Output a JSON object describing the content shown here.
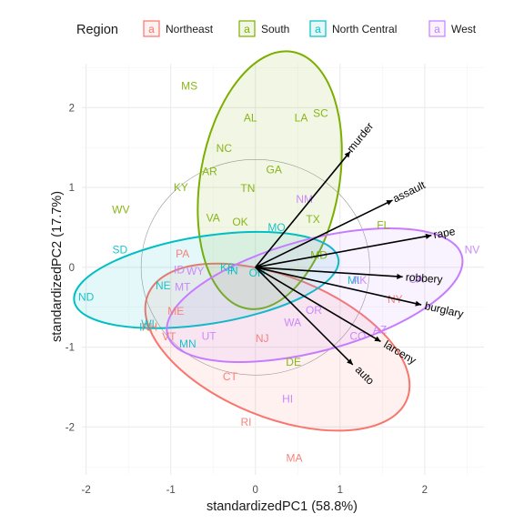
{
  "chart_data": {
    "type": "scatter",
    "title": "",
    "xlabel": "standardizedPC1 (58.8%)",
    "ylabel": "standardizedPC2 (17.7%)",
    "xlim": [
      -2.05,
      2.7
    ],
    "ylim": [
      -2.6,
      2.55
    ],
    "x_ticks": [
      -2,
      -1,
      0,
      1,
      2
    ],
    "y_ticks": [
      -2,
      -1,
      0,
      1,
      2
    ],
    "grid": true,
    "legend": {
      "title": "Region",
      "position": "top",
      "entries": [
        "Northeast",
        "South",
        "North Central",
        "West"
      ],
      "key_symbol": "a"
    },
    "colors": {
      "Northeast": "#F8766D",
      "South": "#7CAE00",
      "North Central": "#00BFC4",
      "West": "#C77CFF",
      "arrow": "#000000",
      "panel_grid": "#ebebeb",
      "circle": "#999999"
    },
    "points": [
      {
        "label": "MS",
        "region": "South",
        "x": -0.78,
        "y": 2.27
      },
      {
        "label": "AL",
        "region": "South",
        "x": -0.06,
        "y": 1.87
      },
      {
        "label": "LA",
        "region": "South",
        "x": 0.54,
        "y": 1.87
      },
      {
        "label": "SC",
        "region": "South",
        "x": 0.77,
        "y": 1.93
      },
      {
        "label": "NC",
        "region": "South",
        "x": -0.37,
        "y": 1.49
      },
      {
        "label": "GA",
        "region": "South",
        "x": 0.22,
        "y": 1.22
      },
      {
        "label": "AR",
        "region": "South",
        "x": -0.54,
        "y": 1.2
      },
      {
        "label": "KY",
        "region": "South",
        "x": -0.88,
        "y": 1.0
      },
      {
        "label": "TN",
        "region": "South",
        "x": -0.09,
        "y": 0.99
      },
      {
        "label": "WV",
        "region": "South",
        "x": -1.59,
        "y": 0.72
      },
      {
        "label": "VA",
        "region": "South",
        "x": -0.5,
        "y": 0.62
      },
      {
        "label": "OK",
        "region": "South",
        "x": -0.18,
        "y": 0.57
      },
      {
        "label": "TX",
        "region": "South",
        "x": 0.68,
        "y": 0.6
      },
      {
        "label": "MD",
        "region": "South",
        "x": 0.75,
        "y": 0.15
      },
      {
        "label": "FL",
        "region": "South",
        "x": 1.51,
        "y": 0.53
      },
      {
        "label": "DE",
        "region": "South",
        "x": 0.45,
        "y": -1.19
      },
      {
        "label": "NM",
        "region": "West",
        "x": 0.58,
        "y": 0.85
      },
      {
        "label": "NV",
        "region": "West",
        "x": 2.56,
        "y": 0.22
      },
      {
        "label": "CA",
        "region": "West",
        "x": 1.9,
        "y": -0.15
      },
      {
        "label": "MI",
        "region": "North Central",
        "x": 1.16,
        "y": -0.16
      },
      {
        "label": "AK",
        "region": "West",
        "x": 1.23,
        "y": -0.16
      },
      {
        "label": "NY",
        "region": "Northeast",
        "x": 1.65,
        "y": -0.4
      },
      {
        "label": "AZ",
        "region": "West",
        "x": 1.47,
        "y": -0.78
      },
      {
        "label": "CO",
        "region": "West",
        "x": 1.21,
        "y": -0.86
      },
      {
        "label": "OR",
        "region": "West",
        "x": 0.69,
        "y": -0.54
      },
      {
        "label": "WA",
        "region": "West",
        "x": 0.44,
        "y": -0.69
      },
      {
        "label": "NJ",
        "region": "Northeast",
        "x": 0.08,
        "y": -0.89
      },
      {
        "label": "MO",
        "region": "North Central",
        "x": 0.25,
        "y": 0.5
      },
      {
        "label": "IL",
        "region": "North Central",
        "x": 0.07,
        "y": -0.03
      },
      {
        "label": "KS",
        "region": "North Central",
        "x": -0.33,
        "y": 0.0
      },
      {
        "label": "IN",
        "region": "North Central",
        "x": -0.27,
        "y": -0.04
      },
      {
        "label": "OH",
        "region": "North Central",
        "x": 0.02,
        "y": -0.07
      },
      {
        "label": "PA",
        "region": "Northeast",
        "x": -0.86,
        "y": 0.17
      },
      {
        "label": "ID",
        "region": "West",
        "x": -0.9,
        "y": -0.03
      },
      {
        "label": "WY",
        "region": "West",
        "x": -0.71,
        "y": -0.05
      },
      {
        "label": "UT",
        "region": "West",
        "x": -0.55,
        "y": -0.86
      },
      {
        "label": "SD",
        "region": "North Central",
        "x": -1.6,
        "y": 0.22
      },
      {
        "label": "NE",
        "region": "North Central",
        "x": -1.09,
        "y": -0.23
      },
      {
        "label": "MT",
        "region": "West",
        "x": -0.86,
        "y": -0.25
      },
      {
        "label": "ND",
        "region": "North Central",
        "x": -2.0,
        "y": -0.37
      },
      {
        "label": "ME",
        "region": "Northeast",
        "x": -0.94,
        "y": -0.55
      },
      {
        "label": "WI",
        "region": "North Central",
        "x": -1.27,
        "y": -0.71
      },
      {
        "label": "IA",
        "region": "North Central",
        "x": -1.31,
        "y": -0.75
      },
      {
        "label": "NH",
        "region": "Northeast",
        "x": -1.25,
        "y": -0.75
      },
      {
        "label": "VT",
        "region": "Northeast",
        "x": -1.02,
        "y": -0.87
      },
      {
        "label": "MN",
        "region": "North Central",
        "x": -0.8,
        "y": -0.96
      },
      {
        "label": "CT",
        "region": "Northeast",
        "x": -0.3,
        "y": -1.37
      },
      {
        "label": "HI",
        "region": "West",
        "x": 0.38,
        "y": -1.65
      },
      {
        "label": "RI",
        "region": "Northeast",
        "x": -0.11,
        "y": -1.94
      },
      {
        "label": "MA",
        "region": "Northeast",
        "x": 0.46,
        "y": -2.39
      }
    ],
    "loadings": [
      {
        "name": "murder",
        "x": 1.12,
        "y": 1.45
      },
      {
        "name": "assault",
        "x": 1.62,
        "y": 0.84
      },
      {
        "name": "rape",
        "x": 2.08,
        "y": 0.4
      },
      {
        "name": "robbery",
        "x": 1.74,
        "y": -0.12
      },
      {
        "name": "burglary",
        "x": 1.96,
        "y": -0.47
      },
      {
        "name": "larceny",
        "x": 1.48,
        "y": -0.93
      },
      {
        "name": "auto",
        "x": 1.15,
        "y": -1.22
      }
    ],
    "ellipses": [
      {
        "region": "Northeast",
        "cx": 0.26,
        "cy": -1.0,
        "rx": 1.65,
        "ry": 0.88,
        "angle": -22
      },
      {
        "region": "South",
        "cx": 0.17,
        "cy": 1.09,
        "rx": 1.54,
        "ry": 0.87,
        "angle": 80
      },
      {
        "region": "North Central",
        "cx": -0.58,
        "cy": -0.16,
        "rx": 1.58,
        "ry": 0.55,
        "angle": 9
      },
      {
        "region": "West",
        "cx": 0.7,
        "cy": -0.35,
        "rx": 1.8,
        "ry": 0.7,
        "angle": 15
      }
    ],
    "correlation_circle_radius": 1.35
  }
}
